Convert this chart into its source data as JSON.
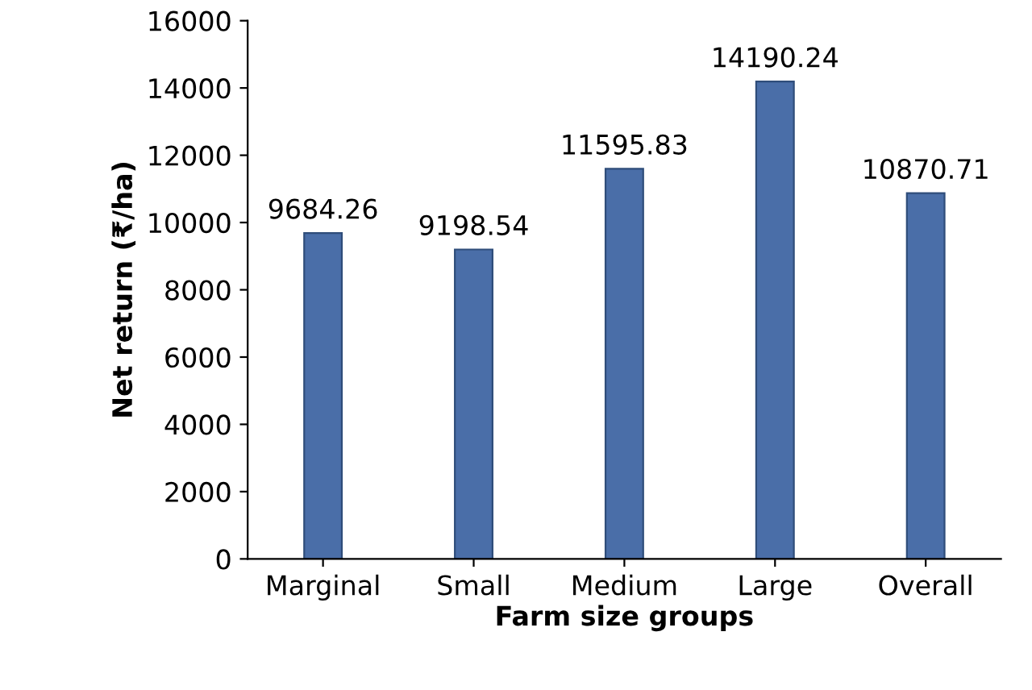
{
  "chart_data": {
    "type": "bar",
    "xlabel": "Farm size groups",
    "ylabel": "Net return (₹/ha)",
    "categories": [
      "Marginal",
      "Small",
      "Medium",
      "Large",
      "Overall"
    ],
    "values": [
      9684.26,
      9198.54,
      11595.83,
      14190.24,
      10870.71
    ],
    "color": "#4a6ea8",
    "data_labels": true,
    "ylim": [
      0,
      16000
    ],
    "yticks": [
      0,
      2000,
      4000,
      6000,
      8000,
      10000,
      12000,
      14000,
      16000
    ],
    "grid": false,
    "legend": false
  }
}
